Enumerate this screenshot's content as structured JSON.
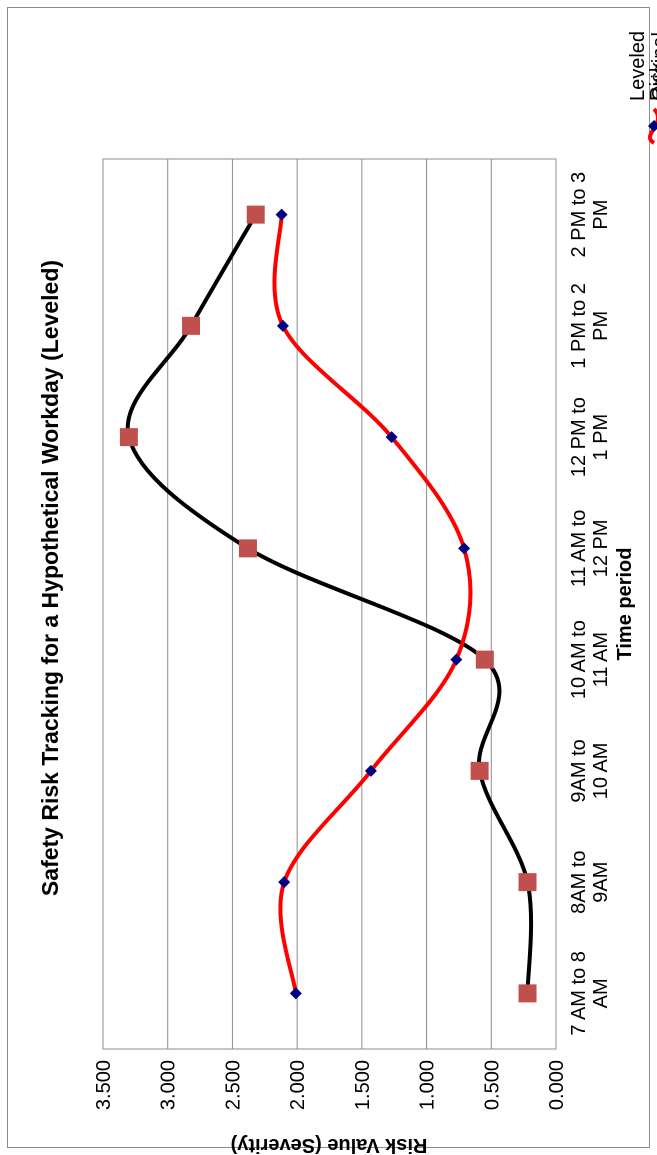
{
  "chart_data": {
    "type": "line",
    "title": "Safety Risk Tracking for a Hypothetical Workday (Leveled)",
    "xlabel": "Time period",
    "ylabel": "Risk Value (Severity)",
    "categories": [
      [
        "7 AM to 8",
        "AM"
      ],
      [
        "8AM to",
        "9AM"
      ],
      [
        "9AM to",
        "10 AM"
      ],
      [
        "10 AM to",
        "11 AM"
      ],
      [
        "11 AM to",
        "12 PM"
      ],
      [
        "12 PM to",
        "1 PM"
      ],
      [
        "1 PM to 2",
        "PM"
      ],
      [
        "2 PM to 3",
        "PM"
      ]
    ],
    "y_ticks": [
      "0.000",
      "0.500",
      "1.000",
      "1.500",
      "2.000",
      "2.500",
      "3.000",
      "3.500"
    ],
    "ylim": [
      0,
      3.5
    ],
    "grid": true,
    "smooth": true,
    "rotation": "chart rotated 90 degrees counter-clockwise",
    "legend_position": "right",
    "series": [
      {
        "name": [
          "Leveled",
          "Risk"
        ],
        "color": "#ff0000",
        "marker": "diamond",
        "marker_color": "#000080",
        "values": [
          2.01,
          2.1,
          1.43,
          0.77,
          0.71,
          1.27,
          2.11,
          2.12
        ]
      },
      {
        "name": [
          "Original",
          "Risk"
        ],
        "color": "#000000",
        "marker": "square",
        "marker_color": "#c0504d",
        "values": [
          0.22,
          0.22,
          0.59,
          0.55,
          2.38,
          3.3,
          2.82,
          2.32
        ]
      }
    ]
  }
}
